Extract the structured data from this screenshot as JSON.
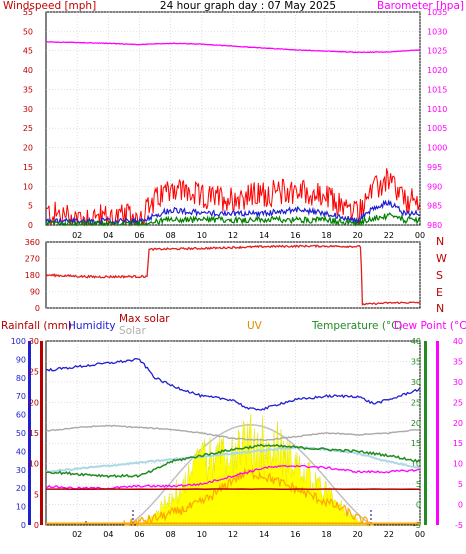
{
  "header": {
    "left_label": "Windspeed [mph]",
    "title": "24 hour graph day : 07 May 2025",
    "right_label": "Barometer [hpa]"
  },
  "colors": {
    "windspeed": "#ff0000",
    "wind_avg": "#2020d0",
    "wind_low": "#008000",
    "barometer": "#ff00ff",
    "winddir": "#e02020",
    "humidity": "#2020d0",
    "temperature": "#228b22",
    "dewpoint": "#ff00ff",
    "solar": "#a9a9a9",
    "max_solar": "#c0c0c0",
    "uv_fill": "#ffff00",
    "uv_line": "#ffa500",
    "rainfall": "#b30000",
    "heat_index": "#add8e6"
  },
  "chart_data": [
    {
      "type": "line",
      "title": "24 hour graph day : 07 May 2025",
      "x_ticks": [
        "02",
        "04",
        "06",
        "08",
        "10",
        "12",
        "14",
        "16",
        "18",
        "20",
        "22",
        "00"
      ],
      "left_axis": {
        "label": "Windspeed [mph]",
        "range": [
          0,
          55
        ],
        "ticks": [
          0,
          5,
          10,
          15,
          20,
          25,
          30,
          35,
          40,
          45,
          50,
          55
        ]
      },
      "right_axis": {
        "label": "Barometer [hpa]",
        "range": [
          980,
          1035
        ],
        "ticks": [
          980,
          985,
          990,
          995,
          1000,
          1005,
          1010,
          1015,
          1020,
          1025,
          1030,
          1035
        ]
      },
      "series": [
        {
          "axis": "right",
          "hours": [
            0,
            2,
            4,
            6,
            8,
            10,
            12,
            14,
            16,
            18,
            20,
            22,
            24
          ],
          "values": [
            1027.3,
            1027.1,
            1026.9,
            1026.6,
            1026.9,
            1026.7,
            1026.2,
            1025.7,
            1025.2,
            1024.9,
            1024.6,
            1024.7,
            1025.2
          ]
        },
        {
          "axis": "left",
          "hours": [
            0,
            2,
            4,
            6,
            8,
            10,
            12,
            14,
            16,
            18,
            20,
            20.5,
            22,
            23,
            24
          ],
          "values": [
            3,
            2,
            2,
            2,
            10,
            7,
            7,
            8,
            9,
            7,
            3,
            7,
            12,
            6,
            6
          ]
        },
        {
          "axis": "left",
          "hours": [
            0,
            2,
            4,
            6,
            8,
            10,
            12,
            14,
            16,
            18,
            20,
            20.5,
            22,
            23,
            24
          ],
          "values": [
            1,
            1,
            1,
            1,
            4,
            3,
            3,
            3,
            4,
            3,
            1,
            3,
            6,
            3,
            3
          ]
        },
        {
          "axis": "left",
          "hours": [
            0,
            2,
            4,
            6,
            8,
            10,
            12,
            14,
            16,
            18,
            20,
            20.5,
            22,
            23,
            24
          ],
          "values": [
            0,
            0,
            0,
            0,
            1,
            1,
            1,
            1,
            1,
            1,
            0,
            1,
            2,
            1,
            1
          ]
        }
      ]
    },
    {
      "type": "line",
      "left_ticks": [
        0,
        90,
        180,
        270,
        360
      ],
      "right_labels": [
        "N",
        "W",
        "S",
        "E",
        "N"
      ],
      "range": [
        0,
        360
      ],
      "series": [
        {
          "hours": [
            0,
            0.01,
            3,
            6.5,
            6.6,
            10,
            14,
            17,
            20.2,
            20.3,
            22,
            24
          ],
          "values": [
            168,
            180,
            170,
            172,
            320,
            325,
            335,
            338,
            335,
            20,
            28,
            30
          ]
        }
      ]
    },
    {
      "type": "line",
      "labels": {
        "rainfall": "Rainfall (mm)",
        "humidity": "Humidity",
        "max_solar": "Max solar",
        "solar": "Solar",
        "uv": "UV",
        "temperature": "Temperature (°C)",
        "dewpoint": "Dew Point (°C)"
      },
      "x_ticks": [
        "02",
        "04",
        "06",
        "08",
        "10",
        "12",
        "14",
        "16",
        "18",
        "20",
        "22",
        "00"
      ],
      "axes": {
        "humidity_ticks": [
          0,
          10,
          20,
          30,
          40,
          50,
          60,
          70,
          80,
          90,
          100
        ],
        "rainfall_ticks": [
          0,
          5,
          10,
          15,
          20,
          25,
          30
        ],
        "temperature_ticks": [
          -5,
          0,
          5,
          10,
          15,
          20,
          25,
          30,
          35,
          40
        ],
        "temperature_range": [
          -5,
          40
        ]
      },
      "series": [
        {
          "name": "Humidity",
          "hours": [
            0,
            2,
            4,
            6,
            7,
            8,
            10,
            12,
            13,
            14,
            15,
            16,
            18,
            20,
            21,
            22,
            24
          ],
          "values": [
            84,
            86,
            88,
            90,
            80,
            76,
            70,
            68,
            63,
            63,
            66,
            68,
            70,
            70,
            66,
            68,
            74
          ]
        },
        {
          "name": "Temperature (°C)",
          "hours": [
            0,
            2,
            4,
            6,
            7,
            8,
            10,
            12,
            14,
            16,
            18,
            20,
            22,
            24
          ],
          "values": [
            8,
            7.5,
            7,
            7,
            8.5,
            10.5,
            12,
            13.5,
            14.5,
            14,
            13.5,
            13,
            12,
            10.5
          ]
        },
        {
          "name": "Dew Point (°C)",
          "hours": [
            0,
            2,
            4,
            6,
            8,
            10,
            12,
            14,
            16,
            18,
            20,
            22,
            24
          ],
          "values": [
            4.5,
            4,
            4,
            4.5,
            4.5,
            5,
            7,
            9,
            9.5,
            9,
            8,
            8,
            8.5
          ]
        },
        {
          "name": "Solar",
          "hours": [
            0,
            2,
            4,
            6,
            8,
            10,
            12,
            14,
            16,
            18,
            20,
            22,
            24
          ],
          "values": [
            51,
            53,
            54,
            53,
            52,
            50,
            47,
            46,
            48,
            50,
            49,
            50,
            52
          ]
        },
        {
          "name": "Rainfall (mm)",
          "hours": [
            0,
            24
          ],
          "values": [
            19.5,
            19.5
          ]
        },
        {
          "name": "UV",
          "hours": [
            5,
            7,
            9,
            10,
            11,
            12,
            13,
            14,
            15,
            16,
            17,
            18,
            19,
            20,
            21
          ],
          "values": [
            0,
            2,
            5,
            7,
            10,
            14,
            16,
            15,
            13,
            11,
            9,
            7,
            5,
            2,
            0
          ]
        }
      ]
    }
  ]
}
